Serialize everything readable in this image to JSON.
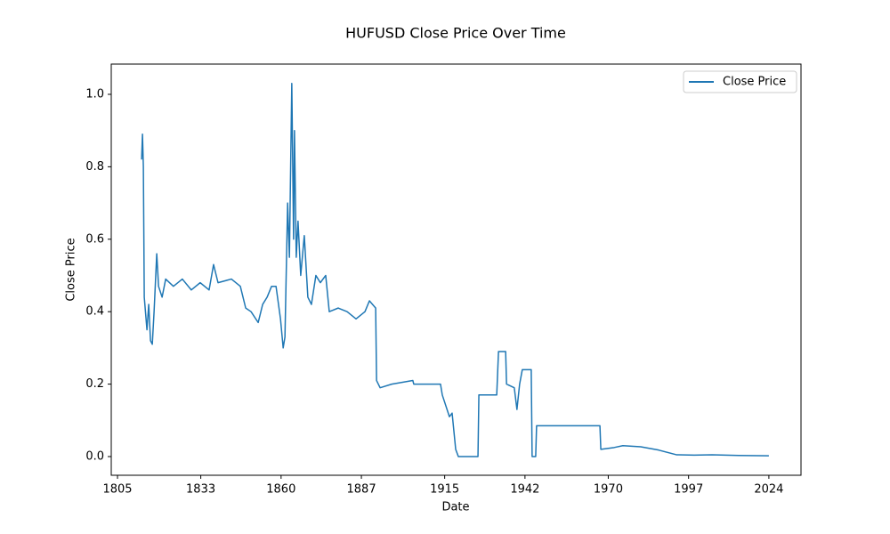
{
  "chart_data": {
    "type": "line",
    "title": "HUFUSD Close Price Over Time",
    "x_label": "Date",
    "y_label": "Close Price",
    "x": [
      1813.1,
      1813.4,
      1813.7,
      1814.0,
      1814.9,
      1815.5,
      1816.1,
      1816.7,
      1817.3,
      1818.2,
      1818.8,
      1820.0,
      1821.2,
      1823.8,
      1826.8,
      1829.8,
      1832.8,
      1835.8,
      1837.3,
      1838.8,
      1843.3,
      1846.3,
      1848.1,
      1849.9,
      1852.3,
      1853.8,
      1855.3,
      1856.8,
      1858.3,
      1859.8,
      1860.7,
      1861.3,
      1862.2,
      1862.8,
      1863.6,
      1864.2,
      1864.5,
      1865.1,
      1865.7,
      1866.6,
      1867.8,
      1869.0,
      1870.2,
      1871.7,
      1873.2,
      1875.0,
      1876.2,
      1879.2,
      1882.2,
      1885.2,
      1888.2,
      1889.7,
      1891.8,
      1892.1,
      1893.3,
      1897.2,
      1904.3,
      1904.6,
      1913.6,
      1914.2,
      1916.6,
      1917.5,
      1918.7,
      1919.6,
      1926.2,
      1926.5,
      1930.1,
      1932.5,
      1933.1,
      1935.5,
      1935.8,
      1938.4,
      1939.3,
      1940.2,
      1941.1,
      1944.1,
      1944.4,
      1945.6,
      1945.9,
      1967.2,
      1967.5,
      1972.0,
      1974.9,
      1980.9,
      1986.9,
      1992.9,
      1998.9,
      2004.9,
      2013.8,
      2024.0
    ],
    "series": [
      {
        "name": "Close Price",
        "color": "#1f77b4",
        "values": [
          0.82,
          0.89,
          0.8,
          0.44,
          0.35,
          0.42,
          0.32,
          0.31,
          0.4,
          0.56,
          0.47,
          0.44,
          0.49,
          0.47,
          0.49,
          0.46,
          0.48,
          0.46,
          0.53,
          0.48,
          0.49,
          0.47,
          0.41,
          0.4,
          0.37,
          0.42,
          0.44,
          0.47,
          0.47,
          0.38,
          0.3,
          0.33,
          0.7,
          0.55,
          1.03,
          0.6,
          0.9,
          0.55,
          0.65,
          0.5,
          0.61,
          0.44,
          0.42,
          0.5,
          0.48,
          0.5,
          0.4,
          0.41,
          0.4,
          0.38,
          0.4,
          0.43,
          0.41,
          0.21,
          0.19,
          0.2,
          0.21,
          0.2,
          0.2,
          0.17,
          0.11,
          0.12,
          0.02,
          0.0,
          0.0,
          0.17,
          0.17,
          0.17,
          0.29,
          0.29,
          0.2,
          0.19,
          0.13,
          0.2,
          0.24,
          0.24,
          0.0,
          0.0,
          0.085,
          0.085,
          0.02,
          0.025,
          0.03,
          0.027,
          0.018,
          0.005,
          0.004,
          0.005,
          0.003,
          0.002
        ]
      }
    ],
    "xlim": [
      1802.9,
      2034.8
    ],
    "ylim": [
      -0.0516,
      1.0835
    ],
    "xticks": [
      1805,
      1833,
      1860,
      1887,
      1915,
      1942,
      1970,
      1997,
      2024
    ],
    "yticks": [
      {
        "value": 0,
        "label": "0.0"
      },
      {
        "value": 0.2,
        "label": "0.2"
      },
      {
        "value": 0.4,
        "label": "0.4"
      },
      {
        "value": 0.6,
        "label": "0.6"
      },
      {
        "value": 0.8,
        "label": "0.8"
      },
      {
        "value": 1,
        "label": "1.0"
      }
    ],
    "legend": "upper right",
    "grid": false
  }
}
